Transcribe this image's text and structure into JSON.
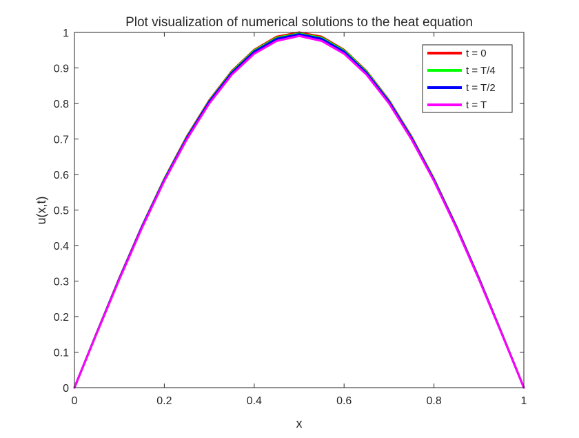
{
  "chart_data": {
    "type": "line",
    "title": "Plot visualization of numerical solutions to the heat equation",
    "xlabel": "x",
    "ylabel": "u(x,t)",
    "xlim": [
      0,
      1
    ],
    "ylim": [
      0,
      1
    ],
    "xticks": [
      0,
      0.2,
      0.4,
      0.6,
      0.8,
      1
    ],
    "xtick_labels": [
      "0",
      "0.2",
      "0.4",
      "0.6",
      "0.8",
      "1"
    ],
    "yticks": [
      0,
      0.1,
      0.2,
      0.3,
      0.4,
      0.5,
      0.6,
      0.7,
      0.8,
      0.9,
      1
    ],
    "ytick_labels": [
      "0",
      "0.1",
      "0.2",
      "0.3",
      "0.4",
      "0.5",
      "0.6",
      "0.7",
      "0.8",
      "0.9",
      "1"
    ],
    "grid": false,
    "legend_position": "top-right",
    "x": [
      0,
      0.05,
      0.1,
      0.15,
      0.2,
      0.25,
      0.3,
      0.35,
      0.4,
      0.45,
      0.5,
      0.55,
      0.6,
      0.65,
      0.7,
      0.75,
      0.8,
      0.85,
      0.9,
      0.95,
      1
    ],
    "series": [
      {
        "name": "t = 0",
        "color": "#ff0000",
        "values": [
          0,
          0.156,
          0.309,
          0.454,
          0.588,
          0.707,
          0.809,
          0.891,
          0.951,
          0.988,
          1.0,
          0.988,
          0.951,
          0.891,
          0.809,
          0.707,
          0.588,
          0.454,
          0.309,
          0.156,
          0
        ]
      },
      {
        "name": "t = T/4",
        "color": "#00ff00",
        "values": [
          0,
          0.156,
          0.308,
          0.453,
          0.587,
          0.705,
          0.807,
          0.889,
          0.949,
          0.985,
          0.997,
          0.985,
          0.949,
          0.889,
          0.807,
          0.705,
          0.587,
          0.453,
          0.308,
          0.156,
          0
        ]
      },
      {
        "name": "t = T/2",
        "color": "#0000ff",
        "values": [
          0,
          0.155,
          0.307,
          0.452,
          0.585,
          0.703,
          0.805,
          0.886,
          0.946,
          0.982,
          0.995,
          0.982,
          0.946,
          0.886,
          0.805,
          0.703,
          0.585,
          0.452,
          0.307,
          0.155,
          0
        ]
      },
      {
        "name": "t = T",
        "color": "#ff00ff",
        "values": [
          0,
          0.154,
          0.305,
          0.449,
          0.582,
          0.699,
          0.8,
          0.881,
          0.94,
          0.976,
          0.99,
          0.976,
          0.94,
          0.881,
          0.8,
          0.699,
          0.582,
          0.449,
          0.305,
          0.154,
          0
        ]
      }
    ]
  }
}
